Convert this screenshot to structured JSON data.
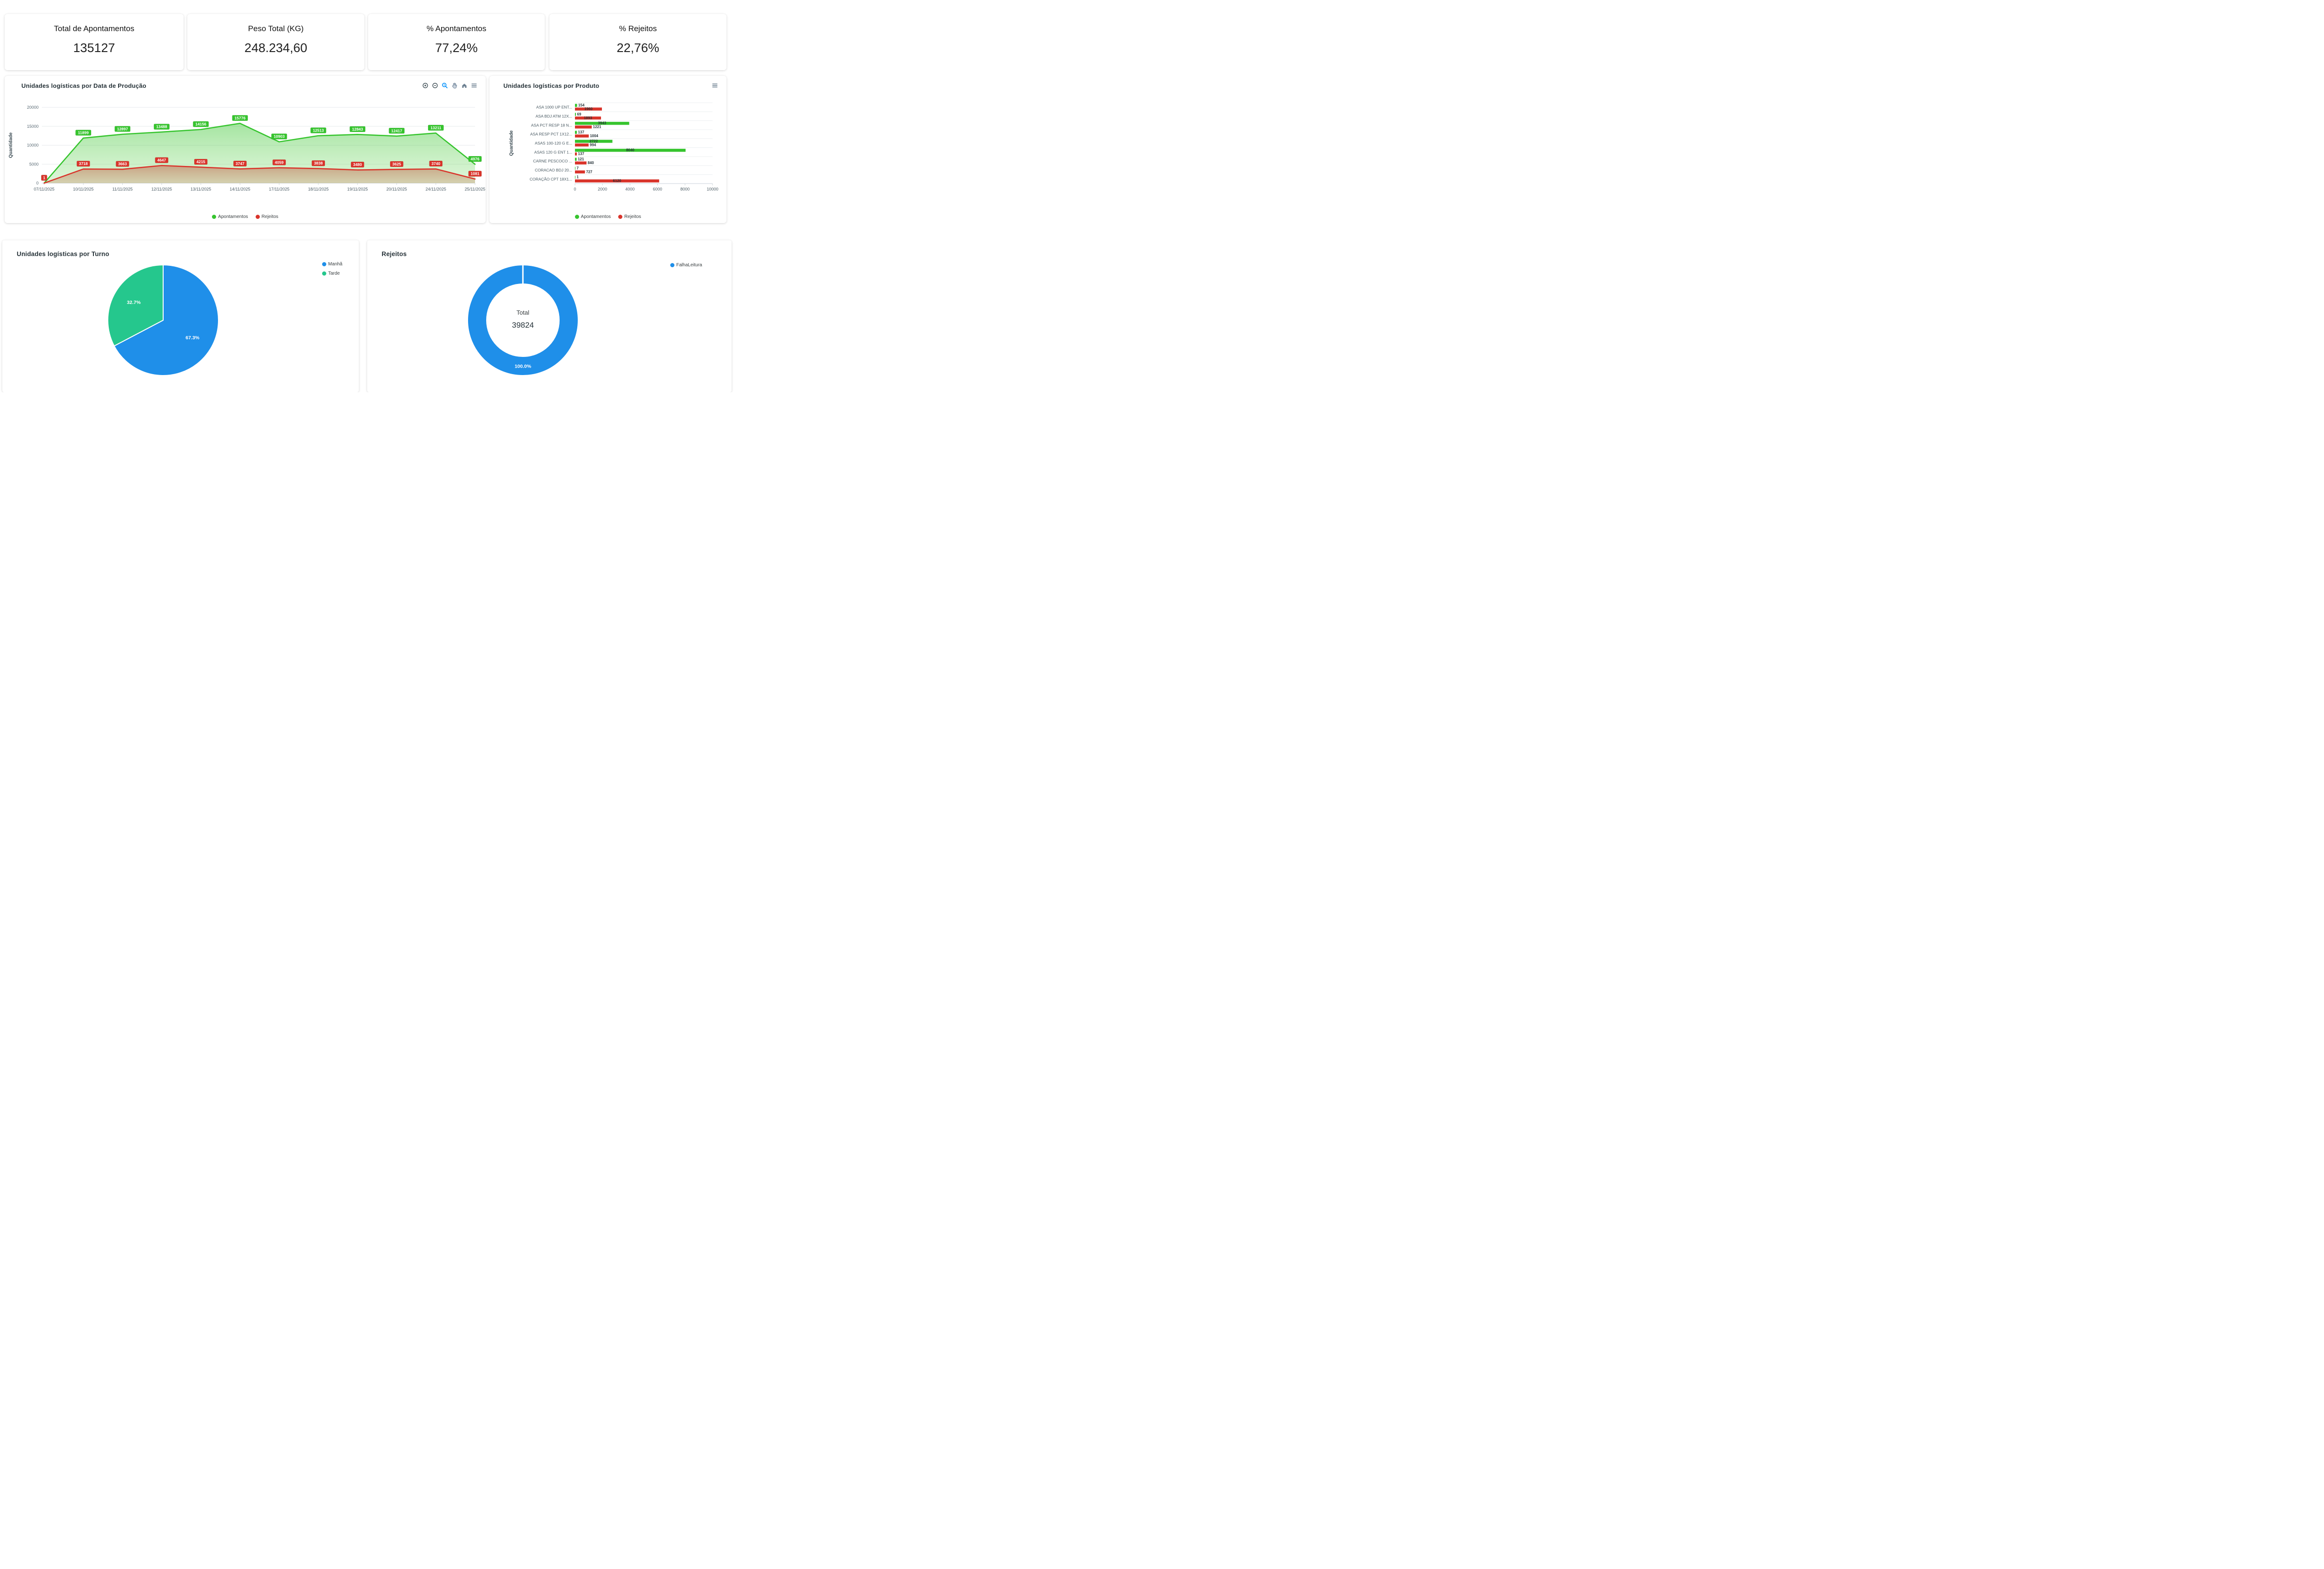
{
  "kpis": [
    {
      "label": "Total de Apontamentos",
      "value": "135127"
    },
    {
      "label": "Peso Total (KG)",
      "value": "248.234,60"
    },
    {
      "label": "% Apontamentos",
      "value": "77,24%"
    },
    {
      "label": "% Rejeitos",
      "value": "22,76%"
    }
  ],
  "colors": {
    "apontamentos_green": "#36c42e",
    "rejeitos_red": "#d9342b",
    "manha_blue": "#1f8fe9",
    "tarde_teal": "#25c78d",
    "falhaleitura_blue": "#1f8fe9",
    "grid": "#e6e9ec",
    "axis_text": "#5b6b75",
    "title_text": "#263238",
    "selection_zoom_active": "#008FFB"
  },
  "toolbar": {
    "icons": [
      "zoom-in",
      "zoom-out",
      "selection-zoom",
      "pan",
      "reset-zoom",
      "menu"
    ]
  },
  "chart_data": [
    {
      "type": "area",
      "title": "Unidades logísticas por Data de Produção",
      "xlabel": "",
      "ylabel": "Quantidade",
      "ylim": [
        0,
        20000
      ],
      "yticks": [
        0,
        5000,
        10000,
        15000,
        20000
      ],
      "grid": true,
      "legend_position": "bottom",
      "categories": [
        "07/11/2025",
        "10/11/2025",
        "11/11/2025",
        "12/11/2025",
        "13/11/2025",
        "14/11/2025",
        "17/11/2025",
        "18/11/2025",
        "19/11/2025",
        "20/11/2025",
        "24/11/2025",
        "25/11/2025"
      ],
      "series": [
        {
          "name": "Apontamentos",
          "color": "#36c42e",
          "values": [
            1,
            11899,
            12897,
            13488,
            14156,
            15776,
            10903,
            12513,
            12843,
            12417,
            13211,
            4976
          ]
        },
        {
          "name": "Rejeitos",
          "color": "#d9342b",
          "values": [
            1,
            3718,
            3663,
            4647,
            4215,
            3747,
            4059,
            3838,
            3480,
            3625,
            3740,
            1081
          ]
        }
      ]
    },
    {
      "type": "bar",
      "orientation": "horizontal",
      "title": "Unidades logísticas por Produto",
      "ylabel": "Quantidade",
      "xlim": [
        0,
        10000
      ],
      "xticks": [
        0,
        2000,
        4000,
        6000,
        8000,
        10000
      ],
      "legend_position": "bottom",
      "categories": [
        "ASA 1000 UP ENT...",
        "ASA BDJ ATM 12X...",
        "ASA PCT RESP 18 N...",
        "ASA RESP PCT 1X12...",
        "ASAS 100-120 G E...",
        "ASAS 120 G ENT 1...",
        "CARNE PESCOCO ...",
        "CORACAO BDJ 20...",
        "CORAÇÃO CPT 18X1..."
      ],
      "series": [
        {
          "name": "Apontamentos",
          "color": "#36c42e",
          "values": [
            154,
            69,
            3943,
            137,
            2722,
            8040,
            121,
            7,
            1
          ]
        },
        {
          "name": "Rejeitos",
          "color": "#d9342b",
          "values": [
            1960,
            1893,
            1221,
            1004,
            994,
            137,
            840,
            727,
            6120
          ]
        }
      ]
    },
    {
      "type": "pie",
      "title": "Unidades logísticas por Turno",
      "legend_position": "right",
      "slices": [
        {
          "label": "Manhã",
          "pct": 67.3,
          "color": "#1f8fe9"
        },
        {
          "label": "Tarde",
          "pct": 32.7,
          "color": "#25c78d"
        }
      ]
    },
    {
      "type": "donut",
      "title": "Rejeitos",
      "legend_position": "right",
      "center_label": "Total",
      "center_value": "39824",
      "slices": [
        {
          "label": "FalhaLeitura",
          "pct": 100.0,
          "color": "#1f8fe9"
        }
      ]
    }
  ]
}
